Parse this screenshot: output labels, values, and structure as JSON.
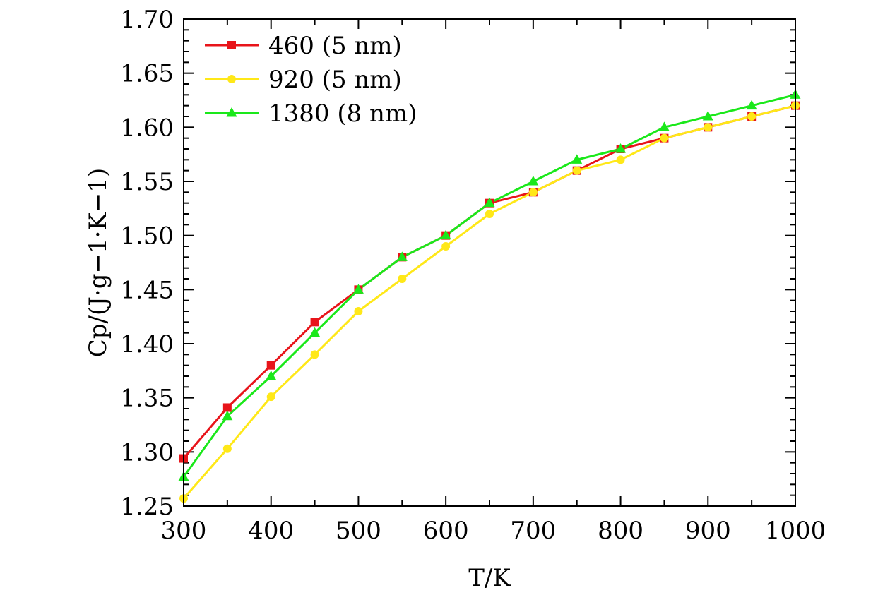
{
  "chart_data": {
    "type": "line",
    "title": "",
    "xlabel": "T/K",
    "ylabel": "Cp/(J·g−1·K−1)",
    "xlim": [
      300,
      1000
    ],
    "ylim": [
      1.25,
      1.7
    ],
    "x_ticks": [
      300,
      400,
      500,
      600,
      700,
      800,
      900,
      1000
    ],
    "y_ticks": [
      1.25,
      1.3,
      1.35,
      1.4,
      1.45,
      1.5,
      1.55,
      1.6,
      1.65,
      1.7
    ],
    "x_tick_labels": [
      "300",
      "400",
      "500",
      "600",
      "700",
      "800",
      "900",
      "1000"
    ],
    "y_tick_labels": [
      "1.25",
      "1.30",
      "1.35",
      "1.40",
      "1.45",
      "1.50",
      "1.55",
      "1.60",
      "1.65",
      "1.70"
    ],
    "grid": false,
    "legend_position": "top-left",
    "x": [
      300,
      350,
      400,
      450,
      500,
      550,
      600,
      650,
      700,
      750,
      800,
      850,
      900,
      950,
      1000
    ],
    "series": [
      {
        "name": "460 (5 nm)",
        "color": "#e8141a",
        "marker": "square",
        "values": [
          1.294,
          1.341,
          1.38,
          1.42,
          1.45,
          1.48,
          1.5,
          1.53,
          1.54,
          1.56,
          1.58,
          1.59,
          1.6,
          1.61,
          1.62
        ]
      },
      {
        "name": "920 (5 nm)",
        "color": "#ffe818",
        "marker": "circle",
        "values": [
          1.257,
          1.303,
          1.351,
          1.39,
          1.43,
          1.46,
          1.49,
          1.52,
          1.54,
          1.56,
          1.57,
          1.59,
          1.6,
          1.61,
          1.62
        ]
      },
      {
        "name": "1380 (8 nm)",
        "color": "#1ae81a",
        "marker": "triangle",
        "values": [
          1.277,
          1.333,
          1.37,
          1.41,
          1.45,
          1.48,
          1.5,
          1.53,
          1.55,
          1.57,
          1.58,
          1.6,
          1.61,
          1.62,
          1.63
        ]
      }
    ]
  }
}
